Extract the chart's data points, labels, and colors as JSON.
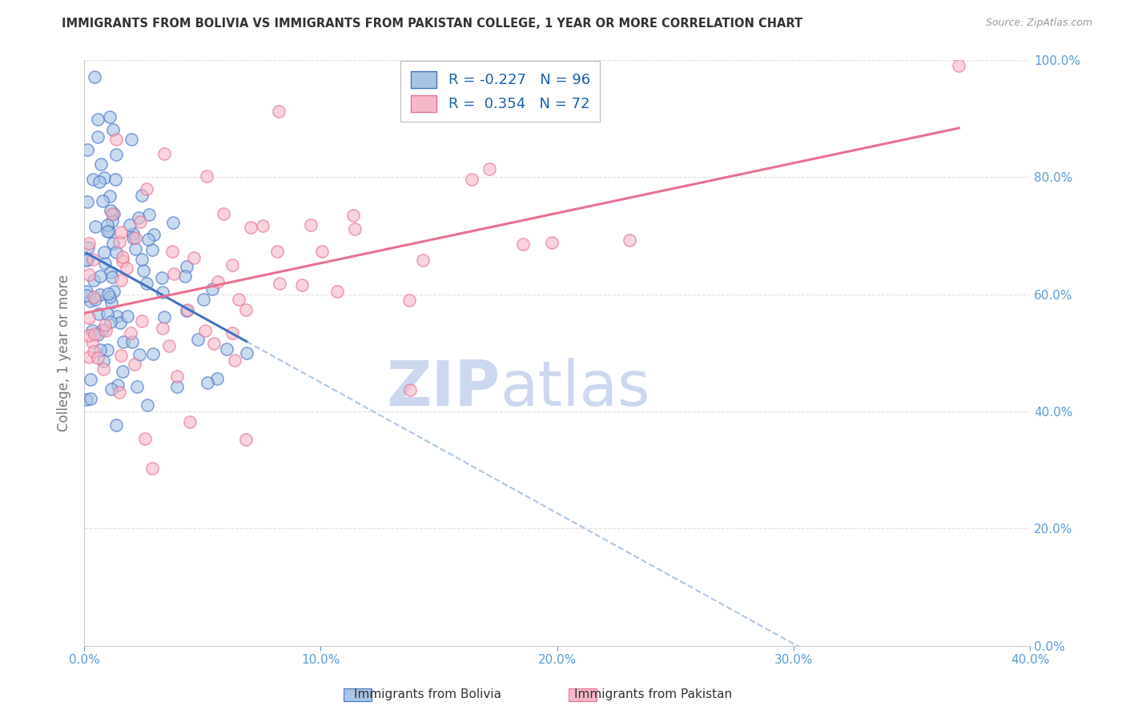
{
  "title": "IMMIGRANTS FROM BOLIVIA VS IMMIGRANTS FROM PAKISTAN COLLEGE, 1 YEAR OR MORE CORRELATION CHART",
  "source": "Source: ZipAtlas.com",
  "ylabel_label": "College, 1 year or more",
  "legend_label1": "Immigrants from Bolivia",
  "legend_label2": "Immigrants from Pakistan",
  "bolivia_R": -0.227,
  "bolivia_N": 96,
  "pakistan_R": 0.354,
  "pakistan_N": 72,
  "bolivia_color": "#a8c4e5",
  "pakistan_color": "#f5b8c8",
  "bolivia_line_color": "#4472c4",
  "pakistan_line_color": "#e87090",
  "bolivia_dash_color": "#8ab0d8",
  "watermark_zip": "ZIP",
  "watermark_atlas": "atlas",
  "watermark_color": "#ccd8ee",
  "background_color": "#ffffff",
  "xlim": [
    0.0,
    0.4
  ],
  "ylim": [
    0.0,
    1.0
  ],
  "right_ytick_color": "#5b9bd5",
  "x_tick_color": "#5b9bd5",
  "grid_color": "#e0e0e0",
  "title_color": "#333333",
  "source_color": "#999999",
  "legend_text_color": "#1a5faa",
  "ylabel_color": "#777777"
}
